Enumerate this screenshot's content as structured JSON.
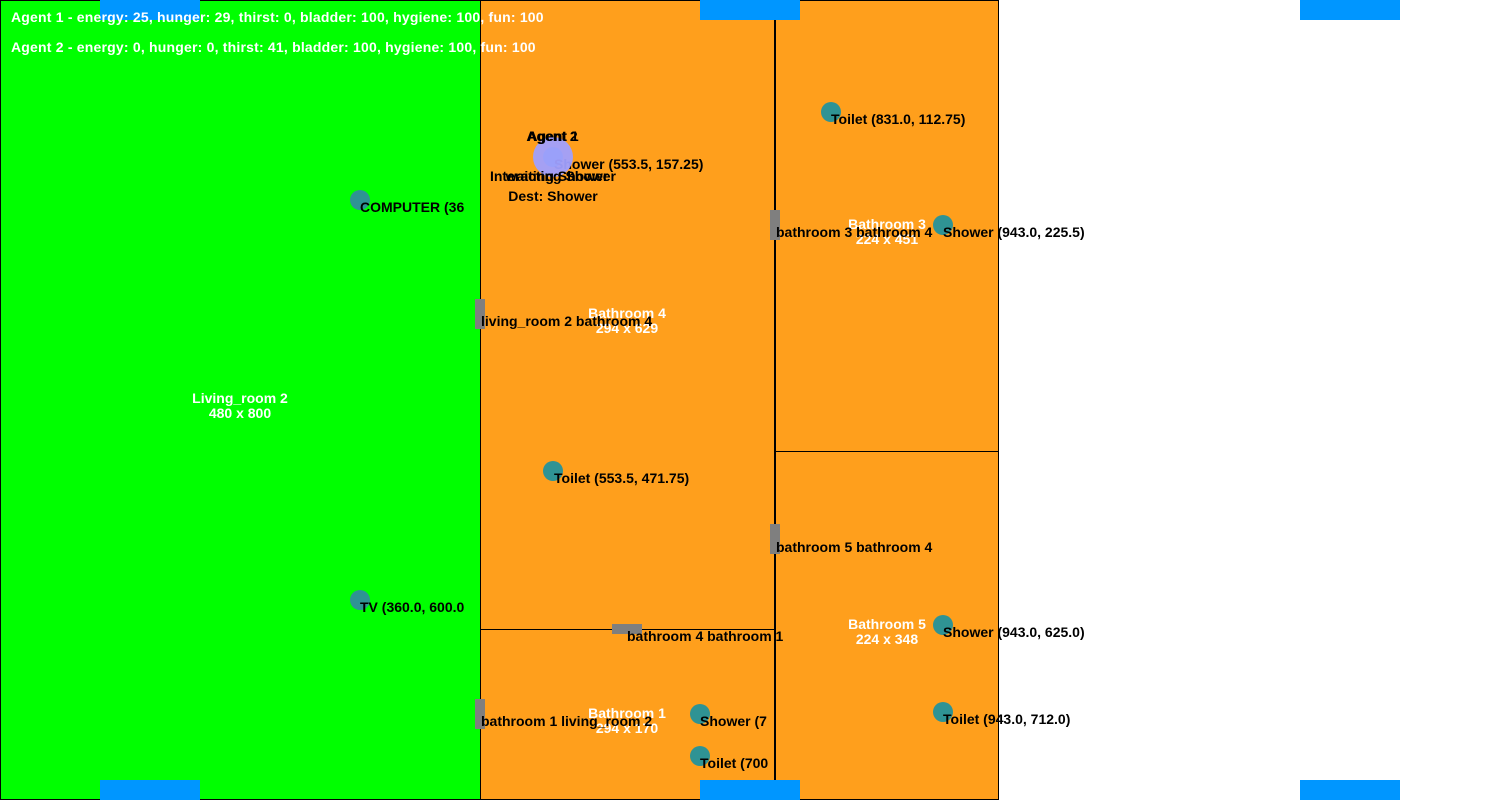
{
  "hud": {
    "agent1_stats": "Agent 1 - energy: 25, hunger: 29, thirst: 0, bladder: 100, hygiene: 100, fun: 100",
    "agent2_stats": "Agent 2 - energy: 0, hunger: 0, thirst: 41, bladder: 100, hygiene: 100, fun: 100"
  },
  "colors": {
    "living_room": "#00ff00",
    "bathroom": "#ff9f1c",
    "marker": "#2f9394",
    "door": "#7f7f7f",
    "window": "#0096ff",
    "agent": "#a0a0ff"
  },
  "rooms": {
    "living_room_2": {
      "name": "Living_room 2",
      "size": "480 x 800"
    },
    "bathroom_4": {
      "name": "Bathroom 4",
      "size": "294 x 629"
    },
    "bathroom_1": {
      "name": "Bathroom 1",
      "size": "294 x 170"
    },
    "bathroom_3": {
      "name": "Bathroom 3",
      "size": "224 x 451"
    },
    "bathroom_5": {
      "name": "Bathroom 5",
      "size": "224 x 348"
    }
  },
  "objects": {
    "computer": "COMPUTER (36",
    "tv": "TV (360.0, 600.0",
    "shower_b4": "Shower (553.5, 157.25)",
    "toilet_b4": "Toilet (553.5, 471.75)",
    "toilet_b3": "Toilet (831.0, 112.75)",
    "shower_b3": "Shower (943.0, 225.5)",
    "shower_b5": "Shower (943.0, 625.0)",
    "toilet_b5": "Toilet (943.0, 712.0)",
    "shower_b1": "Shower (7",
    "toilet_b1": "Toilet (700"
  },
  "doors": {
    "living2_bath4": "living_room 2 bathroom 4",
    "bath3_bath4": "bathroom 3 bathroom 4",
    "bath5_bath4": "bathroom 5 bathroom 4",
    "bath4_bath1": "bathroom 4 bathroom 1",
    "bath1_living2": "bathroom 1 living_room 2"
  },
  "agents": {
    "agent1": {
      "name": "Agent 1",
      "status": "waiting Shower",
      "dest": "Dest: Shower"
    },
    "agent2": {
      "name": "Agent 2",
      "status": "Interacting Shower"
    }
  }
}
